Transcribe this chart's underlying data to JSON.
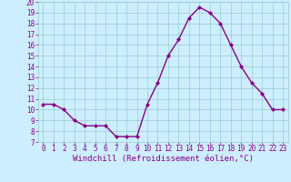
{
  "x": [
    0,
    1,
    2,
    3,
    4,
    5,
    6,
    7,
    8,
    9,
    10,
    11,
    12,
    13,
    14,
    15,
    16,
    17,
    18,
    19,
    20,
    21,
    22,
    23
  ],
  "y": [
    10.5,
    10.5,
    10.0,
    9.0,
    8.5,
    8.5,
    8.5,
    7.5,
    7.5,
    7.5,
    10.5,
    12.5,
    15.0,
    16.5,
    18.5,
    19.5,
    19.0,
    18.0,
    16.0,
    14.0,
    12.5,
    11.5,
    10.0,
    10.0
  ],
  "line_color": "#880088",
  "marker": "D",
  "marker_size": 2.0,
  "bg_color": "#cceeff",
  "grid_color": "#99cccc",
  "xlabel": "Windchill (Refroidissement éolien,°C)",
  "xlabel_color": "#880088",
  "xlabel_fontsize": 6.5,
  "tick_color": "#880088",
  "tick_fontsize": 5.5,
  "ylim": [
    7,
    20
  ],
  "xlim": [
    -0.5,
    23.5
  ],
  "yticks": [
    7,
    8,
    9,
    10,
    11,
    12,
    13,
    14,
    15,
    16,
    17,
    18,
    19,
    20
  ],
  "xticks": [
    0,
    1,
    2,
    3,
    4,
    5,
    6,
    7,
    8,
    9,
    10,
    11,
    12,
    13,
    14,
    15,
    16,
    17,
    18,
    19,
    20,
    21,
    22,
    23
  ],
  "line_width": 1.0
}
